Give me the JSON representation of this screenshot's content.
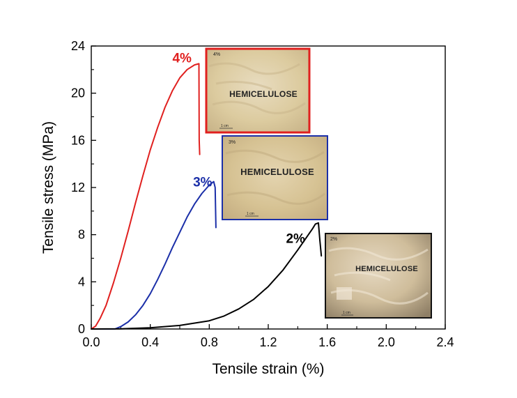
{
  "chart_data": {
    "type": "line",
    "xlabel": "Tensile strain (%)",
    "ylabel": "Tensile stress (MPa)",
    "xlim": [
      0.0,
      2.4
    ],
    "ylim": [
      0,
      24
    ],
    "x_ticks": [
      0.0,
      0.4,
      0.8,
      1.2,
      1.6,
      2.0,
      2.4
    ],
    "x_tick_labels": [
      "0.0",
      "0.4",
      "0.8",
      "1.2",
      "1.6",
      "2.0",
      "2.4"
    ],
    "y_ticks": [
      0,
      4,
      8,
      12,
      16,
      20,
      24
    ],
    "y_tick_labels": [
      "0",
      "4",
      "8",
      "12",
      "16",
      "20",
      "24"
    ],
    "grid": false,
    "series": [
      {
        "name": "4%",
        "color": "#e0201f",
        "x": [
          0.0,
          0.03,
          0.06,
          0.1,
          0.15,
          0.2,
          0.25,
          0.3,
          0.35,
          0.4,
          0.45,
          0.5,
          0.55,
          0.6,
          0.65,
          0.7,
          0.73,
          0.732,
          0.735
        ],
        "y": [
          0.0,
          0.25,
          0.9,
          2.0,
          3.9,
          6.0,
          8.3,
          10.7,
          13.0,
          15.2,
          17.1,
          18.8,
          20.2,
          21.3,
          22.0,
          22.4,
          22.5,
          16.0,
          14.8
        ]
      },
      {
        "name": "3%",
        "color": "#1b2fa8",
        "x": [
          0.0,
          0.16,
          0.2,
          0.25,
          0.3,
          0.35,
          0.4,
          0.45,
          0.5,
          0.55,
          0.6,
          0.65,
          0.7,
          0.75,
          0.8,
          0.83,
          0.84,
          0.845
        ],
        "y": [
          0.0,
          0.0,
          0.2,
          0.6,
          1.2,
          2.0,
          3.0,
          4.2,
          5.5,
          6.9,
          8.2,
          9.5,
          10.6,
          11.5,
          12.2,
          12.5,
          12.0,
          8.6
        ]
      },
      {
        "name": "2%",
        "color": "#000000",
        "x": [
          0.0,
          0.2,
          0.4,
          0.6,
          0.8,
          0.9,
          1.0,
          1.1,
          1.2,
          1.3,
          1.4,
          1.45,
          1.5,
          1.52,
          1.54,
          1.55,
          1.56
        ],
        "y": [
          0.0,
          0.02,
          0.1,
          0.3,
          0.7,
          1.1,
          1.7,
          2.5,
          3.6,
          5.0,
          6.7,
          7.6,
          8.5,
          8.9,
          9.0,
          7.5,
          6.2
        ]
      }
    ],
    "annotations": [
      {
        "text": "4%",
        "color": "#e0201f",
        "x": 0.68,
        "y": 22.6
      },
      {
        "text": "3%",
        "color": "#1b2fa8",
        "x": 0.82,
        "y": 12.1
      },
      {
        "text": "2%",
        "color": "#000000",
        "x": 1.45,
        "y": 7.3
      }
    ],
    "insets": [
      {
        "series": "4%",
        "pct_label": "4%",
        "caption": "HEMICELULOSE",
        "scale_label": "1 cm",
        "border_color": "#e0201f"
      },
      {
        "series": "3%",
        "pct_label": "3%",
        "caption": "HEMICELULOSE",
        "scale_label": "1 cm",
        "border_color": "#1b2fa8"
      },
      {
        "series": "2%",
        "pct_label": "2%",
        "caption": "HEMICELULOSE",
        "scale_label": "1 cm",
        "border_color": "#111111"
      }
    ]
  }
}
